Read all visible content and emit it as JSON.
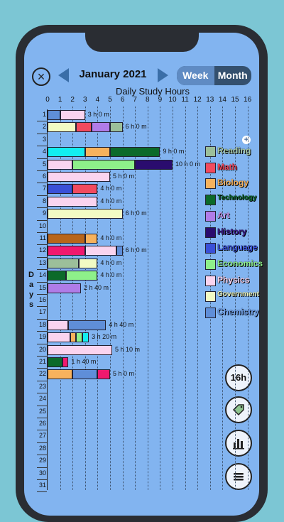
{
  "header": {
    "close_icon": "close-icon",
    "month": "January 2021",
    "prev_icon": "left-arrow-icon",
    "next_icon": "right-arrow-icon",
    "week_label": "Week",
    "month_label": "Month"
  },
  "chart_data": {
    "type": "bar",
    "orientation": "horizontal-stacked",
    "title": "Daily Study Hours",
    "ylabel": "Days",
    "xlim": [
      0,
      16
    ],
    "x_ticks": [
      "0",
      "1",
      "2",
      "3",
      "4",
      "5",
      "6",
      "7",
      "8",
      "9",
      "10",
      "11",
      "12",
      "13",
      "14",
      "15",
      "16"
    ],
    "categories": [
      "1",
      "2",
      "3",
      "4",
      "5",
      "6",
      "7",
      "8",
      "9",
      "10",
      "11",
      "12",
      "13",
      "14",
      "15",
      "16",
      "17",
      "18",
      "19",
      "20",
      "21",
      "22",
      "23",
      "24",
      "25",
      "26",
      "27",
      "28",
      "29",
      "30",
      "31"
    ],
    "rows": [
      {
        "day": "1",
        "total": "3 h 0 m",
        "segments": [
          {
            "subject": "Chemistry",
            "hours": 1
          },
          {
            "subject": "Physics",
            "hours": 2
          }
        ]
      },
      {
        "day": "2",
        "total": "6 h 0 m",
        "segments": [
          {
            "subject": "Government",
            "hours": 2.3
          },
          {
            "subject": "Math",
            "hours": 1.2
          },
          {
            "subject": "Art",
            "hours": 1.5
          },
          {
            "subject": "Reading",
            "hours": 1
          }
        ]
      },
      {
        "day": "3",
        "total": "",
        "segments": []
      },
      {
        "day": "4",
        "total": "9 h 0 m",
        "segments": [
          {
            "subject": "Cyan",
            "hours": 3
          },
          {
            "subject": "Biology",
            "hours": 2
          },
          {
            "subject": "Technology",
            "hours": 4
          }
        ]
      },
      {
        "day": "5",
        "total": "10 h 0 m",
        "segments": [
          {
            "subject": "Physics",
            "hours": 2
          },
          {
            "subject": "Economics",
            "hours": 5
          },
          {
            "subject": "History",
            "hours": 3
          }
        ]
      },
      {
        "day": "6",
        "total": "5 h 0 m",
        "segments": [
          {
            "subject": "Physics",
            "hours": 5
          }
        ]
      },
      {
        "day": "7",
        "total": "4 h 0 m",
        "segments": [
          {
            "subject": "Language",
            "hours": 2
          },
          {
            "subject": "Math",
            "hours": 2
          }
        ]
      },
      {
        "day": "8",
        "total": "4 h 0 m",
        "segments": [
          {
            "subject": "Physics",
            "hours": 4
          }
        ]
      },
      {
        "day": "9",
        "total": "6 h 0 m",
        "segments": [
          {
            "subject": "Government",
            "hours": 6
          }
        ]
      },
      {
        "day": "10",
        "total": "",
        "segments": []
      },
      {
        "day": "11",
        "total": "4 h 0 m",
        "segments": [
          {
            "subject": "Brown",
            "hours": 3
          },
          {
            "subject": "Biology",
            "hours": 1
          }
        ]
      },
      {
        "day": "12",
        "total": "6 h 0 m",
        "segments": [
          {
            "subject": "Magenta",
            "hours": 3
          },
          {
            "subject": "Physics",
            "hours": 2.5
          },
          {
            "subject": "Chemistry",
            "hours": 0.5
          }
        ]
      },
      {
        "day": "13",
        "total": "4 h 0 m",
        "segments": [
          {
            "subject": "Reading",
            "hours": 2.5
          },
          {
            "subject": "Government",
            "hours": 1.5
          }
        ]
      },
      {
        "day": "14",
        "total": "4 h 0 m",
        "segments": [
          {
            "subject": "Technology",
            "hours": 1.5
          },
          {
            "subject": "Economics",
            "hours": 2.5
          }
        ]
      },
      {
        "day": "15",
        "total": "2 h 40 m",
        "segments": [
          {
            "subject": "Art",
            "hours": 2.667
          }
        ]
      },
      {
        "day": "16",
        "total": "",
        "segments": []
      },
      {
        "day": "17",
        "total": "",
        "segments": []
      },
      {
        "day": "18",
        "total": "4 h 40 m",
        "segments": [
          {
            "subject": "Physics",
            "hours": 1.67
          },
          {
            "subject": "Chemistry",
            "hours": 3
          }
        ]
      },
      {
        "day": "19",
        "total": "3 h 20 m",
        "segments": [
          {
            "subject": "Physics",
            "hours": 1.8
          },
          {
            "subject": "Biology",
            "hours": 0.5
          },
          {
            "subject": "Economics",
            "hours": 0.5
          },
          {
            "subject": "Cyan",
            "hours": 0.5
          }
        ]
      },
      {
        "day": "20",
        "total": "5 h 10 m",
        "segments": [
          {
            "subject": "Physics",
            "hours": 5.17
          }
        ]
      },
      {
        "day": "21",
        "total": "1 h 40 m",
        "segments": [
          {
            "subject": "Technology",
            "hours": 1.17
          },
          {
            "subject": "Magenta",
            "hours": 0.5
          }
        ]
      },
      {
        "day": "22",
        "total": "5 h 0 m",
        "segments": [
          {
            "subject": "Biology",
            "hours": 2
          },
          {
            "subject": "Chemistry",
            "hours": 2
          },
          {
            "subject": "Magenta",
            "hours": 1
          }
        ]
      },
      {
        "day": "23",
        "total": "",
        "segments": []
      },
      {
        "day": "24",
        "total": "",
        "segments": []
      },
      {
        "day": "25",
        "total": "",
        "segments": []
      },
      {
        "day": "26",
        "total": "",
        "segments": []
      },
      {
        "day": "27",
        "total": "",
        "segments": []
      },
      {
        "day": "28",
        "total": "",
        "segments": []
      },
      {
        "day": "29",
        "total": "",
        "segments": []
      },
      {
        "day": "30",
        "total": "",
        "segments": []
      },
      {
        "day": "31",
        "total": "",
        "segments": []
      }
    ]
  },
  "colors": {
    "Reading": "#9cbf9a",
    "Math": "#f24a5e",
    "Biology": "#f7b25d",
    "Technology": "#0c6a2a",
    "Art": "#b07ce8",
    "History": "#2a0c6e",
    "Language": "#3a50d8",
    "Economics": "#8ef08a",
    "Physics": "#fad4ef",
    "Government": "#f2fbc4",
    "Chemistry": "#5f8ed8",
    "Cyan": "#13eef0",
    "Brown": "#b8651a",
    "Magenta": "#f0186e"
  },
  "legend": [
    {
      "label": "Reading",
      "color": "#9cbf9a",
      "text": "#a8c8a6"
    },
    {
      "label": "Math",
      "color": "#f24a5e",
      "text": "#f24a5e"
    },
    {
      "label": "Biology",
      "color": "#f7b25d",
      "text": "#f7b25d"
    },
    {
      "label": "Technology",
      "color": "#0c6a2a",
      "text": "#0c6a2a"
    },
    {
      "label": "Art",
      "color": "#b07ce8",
      "text": "#c89af0"
    },
    {
      "label": "History",
      "color": "#2a0c6e",
      "text": "#3a1a88"
    },
    {
      "label": "Language",
      "color": "#3a50d8",
      "text": "#3a50d8"
    },
    {
      "label": "Economics",
      "color": "#8ef08a",
      "text": "#8ef08a"
    },
    {
      "label": "Physics",
      "color": "#fad4ef",
      "text": "#fad4ef"
    },
    {
      "label": "Government",
      "color": "#f2fbc4",
      "text": "#f2fbc4"
    },
    {
      "label": "Chemistry",
      "color": "#5f8ed8",
      "text": "#6f9ee8"
    }
  ],
  "side_buttons": {
    "total_label": "16h",
    "tag_icon": "tag-icon",
    "chart_icon": "bar-chart-icon",
    "menu_icon": "menu-icon"
  }
}
